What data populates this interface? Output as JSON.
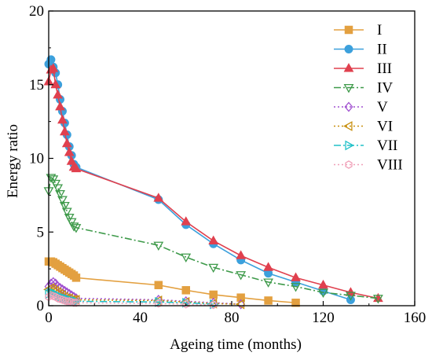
{
  "chart_data": {
    "type": "line",
    "xlabel": "Ageing time (months)",
    "ylabel": "Energy ratio",
    "xlim": [
      0,
      160
    ],
    "ylim": [
      0,
      20
    ],
    "xticks": [
      "0",
      "40",
      "80",
      "120",
      "160"
    ],
    "yticks": [
      "0",
      "5",
      "10",
      "15",
      "20"
    ],
    "grid": false,
    "legend_position": "top-right",
    "series": [
      {
        "name": "I",
        "color": "#E3A040",
        "marker": "square",
        "dash": "solid",
        "x": [
          0,
          1,
          2,
          3,
          4,
          5,
          6,
          7,
          8,
          9,
          10,
          11,
          12,
          48,
          60,
          72,
          84,
          96,
          108
        ],
        "y": [
          3.0,
          3.0,
          2.95,
          2.85,
          2.75,
          2.65,
          2.55,
          2.45,
          2.35,
          2.25,
          2.15,
          2.05,
          1.9,
          1.4,
          1.05,
          0.75,
          0.55,
          0.35,
          0.2
        ]
      },
      {
        "name": "II",
        "color": "#3CA0DC",
        "marker": "circle",
        "dash": "solid",
        "x": [
          0,
          1,
          2,
          3,
          4,
          5,
          6,
          7,
          8,
          9,
          10,
          11,
          12,
          48,
          60,
          72,
          84,
          96,
          108,
          120,
          132
        ],
        "y": [
          16.4,
          16.7,
          16.2,
          15.8,
          15.0,
          14.0,
          13.2,
          12.4,
          11.6,
          10.8,
          10.2,
          9.6,
          9.4,
          7.2,
          5.5,
          4.2,
          3.1,
          2.2,
          1.6,
          1.0,
          0.4
        ]
      },
      {
        "name": "III",
        "color": "#E0404E",
        "marker": "triangle",
        "dash": "solid",
        "x": [
          0,
          1,
          2,
          3,
          4,
          5,
          6,
          7,
          8,
          9,
          10,
          11,
          12,
          48,
          60,
          72,
          84,
          96,
          108,
          120,
          132,
          144
        ],
        "y": [
          15.2,
          16.0,
          16.1,
          15.0,
          14.3,
          13.5,
          12.6,
          11.8,
          11.0,
          10.4,
          9.8,
          9.4,
          9.3,
          7.3,
          5.7,
          4.4,
          3.4,
          2.6,
          1.9,
          1.4,
          0.9,
          0.5
        ]
      },
      {
        "name": "IV",
        "color": "#3E9A4A",
        "marker": "triangle-down",
        "dash": "dashdot",
        "x": [
          0,
          1,
          2,
          3,
          4,
          5,
          6,
          7,
          8,
          9,
          10,
          11,
          12,
          48,
          60,
          72,
          84,
          96,
          108,
          120,
          132,
          144
        ],
        "y": [
          7.8,
          8.7,
          8.6,
          8.3,
          8.0,
          7.6,
          7.2,
          6.8,
          6.4,
          6.0,
          5.7,
          5.4,
          5.3,
          4.1,
          3.3,
          2.6,
          2.1,
          1.6,
          1.3,
          0.9,
          0.7,
          0.5
        ]
      },
      {
        "name": "V",
        "color": "#A050D0",
        "marker": "diamond",
        "dash": "dot",
        "x": [
          0,
          1,
          2,
          3,
          4,
          5,
          6,
          7,
          8,
          9,
          10,
          11,
          12,
          48,
          60,
          72,
          84
        ],
        "y": [
          1.3,
          1.5,
          1.6,
          1.5,
          1.3,
          1.2,
          1.1,
          1.0,
          0.9,
          0.8,
          0.7,
          0.6,
          0.5,
          0.4,
          0.3,
          0.2,
          0.1
        ]
      },
      {
        "name": "VI",
        "color": "#C89010",
        "marker": "triangle-left",
        "dash": "dot",
        "x": [
          0,
          1,
          2,
          3,
          4,
          5,
          6,
          7,
          8,
          9,
          10,
          11,
          12,
          48,
          60,
          72,
          84
        ],
        "y": [
          1.1,
          1.2,
          1.1,
          1.0,
          0.9,
          0.8,
          0.7,
          0.6,
          0.5,
          0.5,
          0.4,
          0.4,
          0.4,
          0.35,
          0.25,
          0.15,
          0.1
        ]
      },
      {
        "name": "VII",
        "color": "#20C0C8",
        "marker": "triangle-right",
        "dash": "dashdot",
        "x": [
          0,
          1,
          2,
          3,
          4,
          5,
          6,
          7,
          8,
          9,
          10,
          11,
          12,
          48,
          60,
          72
        ],
        "y": [
          0.8,
          0.9,
          0.85,
          0.8,
          0.7,
          0.6,
          0.55,
          0.5,
          0.45,
          0.4,
          0.35,
          0.3,
          0.3,
          0.25,
          0.2,
          0.1
        ]
      },
      {
        "name": "VIII",
        "color": "#F0A0B8",
        "marker": "hexagon",
        "dash": "dot",
        "x": [
          0,
          1,
          2,
          3,
          4,
          5,
          6,
          7,
          8,
          9,
          10,
          11,
          12,
          48,
          60,
          72
        ],
        "y": [
          0.6,
          0.7,
          0.65,
          0.6,
          0.5,
          0.45,
          0.4,
          0.35,
          0.3,
          0.3,
          0.25,
          0.2,
          0.2,
          0.15,
          0.1,
          0.05
        ]
      }
    ]
  }
}
